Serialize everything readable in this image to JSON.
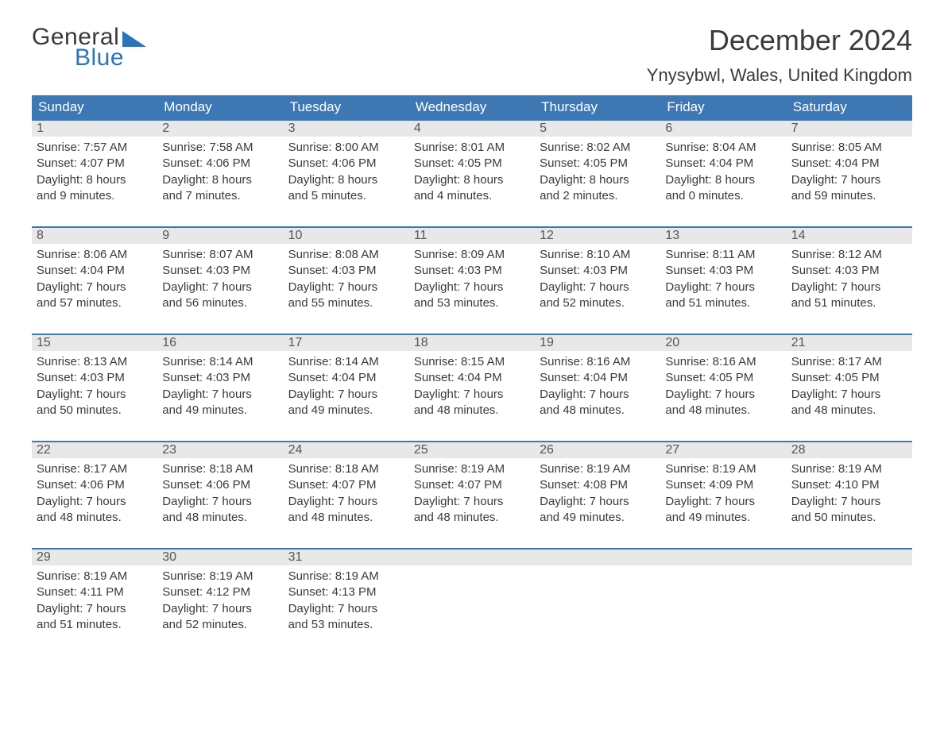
{
  "logo": {
    "text1": "General",
    "text2": "Blue",
    "tri_color": "#2b74bb"
  },
  "title": "December 2024",
  "location": "Ynysybwl, Wales, United Kingdom",
  "day_headers": [
    "Sunday",
    "Monday",
    "Tuesday",
    "Wednesday",
    "Thursday",
    "Friday",
    "Saturday"
  ],
  "colors": {
    "header_bg": "#3d78b5",
    "header_text": "#ffffff",
    "daynum_bg": "#e8e8e8",
    "daynum_text": "#555555",
    "body_text": "#3a3a3a",
    "week_rule": "#3d78b5",
    "page_bg": "#ffffff"
  },
  "typography": {
    "title_fontsize": 36,
    "location_fontsize": 22,
    "dayhead_fontsize": 17,
    "daynum_fontsize": 16,
    "body_fontsize": 15
  },
  "layout": {
    "columns": 7,
    "rows": 5
  },
  "weeks": [
    [
      {
        "n": "1",
        "sr": "Sunrise: 7:57 AM",
        "ss": "Sunset: 4:07 PM",
        "d1": "Daylight: 8 hours",
        "d2": "and 9 minutes."
      },
      {
        "n": "2",
        "sr": "Sunrise: 7:58 AM",
        "ss": "Sunset: 4:06 PM",
        "d1": "Daylight: 8 hours",
        "d2": "and 7 minutes."
      },
      {
        "n": "3",
        "sr": "Sunrise: 8:00 AM",
        "ss": "Sunset: 4:06 PM",
        "d1": "Daylight: 8 hours",
        "d2": "and 5 minutes."
      },
      {
        "n": "4",
        "sr": "Sunrise: 8:01 AM",
        "ss": "Sunset: 4:05 PM",
        "d1": "Daylight: 8 hours",
        "d2": "and 4 minutes."
      },
      {
        "n": "5",
        "sr": "Sunrise: 8:02 AM",
        "ss": "Sunset: 4:05 PM",
        "d1": "Daylight: 8 hours",
        "d2": "and 2 minutes."
      },
      {
        "n": "6",
        "sr": "Sunrise: 8:04 AM",
        "ss": "Sunset: 4:04 PM",
        "d1": "Daylight: 8 hours",
        "d2": "and 0 minutes."
      },
      {
        "n": "7",
        "sr": "Sunrise: 8:05 AM",
        "ss": "Sunset: 4:04 PM",
        "d1": "Daylight: 7 hours",
        "d2": "and 59 minutes."
      }
    ],
    [
      {
        "n": "8",
        "sr": "Sunrise: 8:06 AM",
        "ss": "Sunset: 4:04 PM",
        "d1": "Daylight: 7 hours",
        "d2": "and 57 minutes."
      },
      {
        "n": "9",
        "sr": "Sunrise: 8:07 AM",
        "ss": "Sunset: 4:03 PM",
        "d1": "Daylight: 7 hours",
        "d2": "and 56 minutes."
      },
      {
        "n": "10",
        "sr": "Sunrise: 8:08 AM",
        "ss": "Sunset: 4:03 PM",
        "d1": "Daylight: 7 hours",
        "d2": "and 55 minutes."
      },
      {
        "n": "11",
        "sr": "Sunrise: 8:09 AM",
        "ss": "Sunset: 4:03 PM",
        "d1": "Daylight: 7 hours",
        "d2": "and 53 minutes."
      },
      {
        "n": "12",
        "sr": "Sunrise: 8:10 AM",
        "ss": "Sunset: 4:03 PM",
        "d1": "Daylight: 7 hours",
        "d2": "and 52 minutes."
      },
      {
        "n": "13",
        "sr": "Sunrise: 8:11 AM",
        "ss": "Sunset: 4:03 PM",
        "d1": "Daylight: 7 hours",
        "d2": "and 51 minutes."
      },
      {
        "n": "14",
        "sr": "Sunrise: 8:12 AM",
        "ss": "Sunset: 4:03 PM",
        "d1": "Daylight: 7 hours",
        "d2": "and 51 minutes."
      }
    ],
    [
      {
        "n": "15",
        "sr": "Sunrise: 8:13 AM",
        "ss": "Sunset: 4:03 PM",
        "d1": "Daylight: 7 hours",
        "d2": "and 50 minutes."
      },
      {
        "n": "16",
        "sr": "Sunrise: 8:14 AM",
        "ss": "Sunset: 4:03 PM",
        "d1": "Daylight: 7 hours",
        "d2": "and 49 minutes."
      },
      {
        "n": "17",
        "sr": "Sunrise: 8:14 AM",
        "ss": "Sunset: 4:04 PM",
        "d1": "Daylight: 7 hours",
        "d2": "and 49 minutes."
      },
      {
        "n": "18",
        "sr": "Sunrise: 8:15 AM",
        "ss": "Sunset: 4:04 PM",
        "d1": "Daylight: 7 hours",
        "d2": "and 48 minutes."
      },
      {
        "n": "19",
        "sr": "Sunrise: 8:16 AM",
        "ss": "Sunset: 4:04 PM",
        "d1": "Daylight: 7 hours",
        "d2": "and 48 minutes."
      },
      {
        "n": "20",
        "sr": "Sunrise: 8:16 AM",
        "ss": "Sunset: 4:05 PM",
        "d1": "Daylight: 7 hours",
        "d2": "and 48 minutes."
      },
      {
        "n": "21",
        "sr": "Sunrise: 8:17 AM",
        "ss": "Sunset: 4:05 PM",
        "d1": "Daylight: 7 hours",
        "d2": "and 48 minutes."
      }
    ],
    [
      {
        "n": "22",
        "sr": "Sunrise: 8:17 AM",
        "ss": "Sunset: 4:06 PM",
        "d1": "Daylight: 7 hours",
        "d2": "and 48 minutes."
      },
      {
        "n": "23",
        "sr": "Sunrise: 8:18 AM",
        "ss": "Sunset: 4:06 PM",
        "d1": "Daylight: 7 hours",
        "d2": "and 48 minutes."
      },
      {
        "n": "24",
        "sr": "Sunrise: 8:18 AM",
        "ss": "Sunset: 4:07 PM",
        "d1": "Daylight: 7 hours",
        "d2": "and 48 minutes."
      },
      {
        "n": "25",
        "sr": "Sunrise: 8:19 AM",
        "ss": "Sunset: 4:07 PM",
        "d1": "Daylight: 7 hours",
        "d2": "and 48 minutes."
      },
      {
        "n": "26",
        "sr": "Sunrise: 8:19 AM",
        "ss": "Sunset: 4:08 PM",
        "d1": "Daylight: 7 hours",
        "d2": "and 49 minutes."
      },
      {
        "n": "27",
        "sr": "Sunrise: 8:19 AM",
        "ss": "Sunset: 4:09 PM",
        "d1": "Daylight: 7 hours",
        "d2": "and 49 minutes."
      },
      {
        "n": "28",
        "sr": "Sunrise: 8:19 AM",
        "ss": "Sunset: 4:10 PM",
        "d1": "Daylight: 7 hours",
        "d2": "and 50 minutes."
      }
    ],
    [
      {
        "n": "29",
        "sr": "Sunrise: 8:19 AM",
        "ss": "Sunset: 4:11 PM",
        "d1": "Daylight: 7 hours",
        "d2": "and 51 minutes."
      },
      {
        "n": "30",
        "sr": "Sunrise: 8:19 AM",
        "ss": "Sunset: 4:12 PM",
        "d1": "Daylight: 7 hours",
        "d2": "and 52 minutes."
      },
      {
        "n": "31",
        "sr": "Sunrise: 8:19 AM",
        "ss": "Sunset: 4:13 PM",
        "d1": "Daylight: 7 hours",
        "d2": "and 53 minutes."
      },
      {
        "n": "",
        "sr": "",
        "ss": "",
        "d1": "",
        "d2": ""
      },
      {
        "n": "",
        "sr": "",
        "ss": "",
        "d1": "",
        "d2": ""
      },
      {
        "n": "",
        "sr": "",
        "ss": "",
        "d1": "",
        "d2": ""
      },
      {
        "n": "",
        "sr": "",
        "ss": "",
        "d1": "",
        "d2": ""
      }
    ]
  ]
}
